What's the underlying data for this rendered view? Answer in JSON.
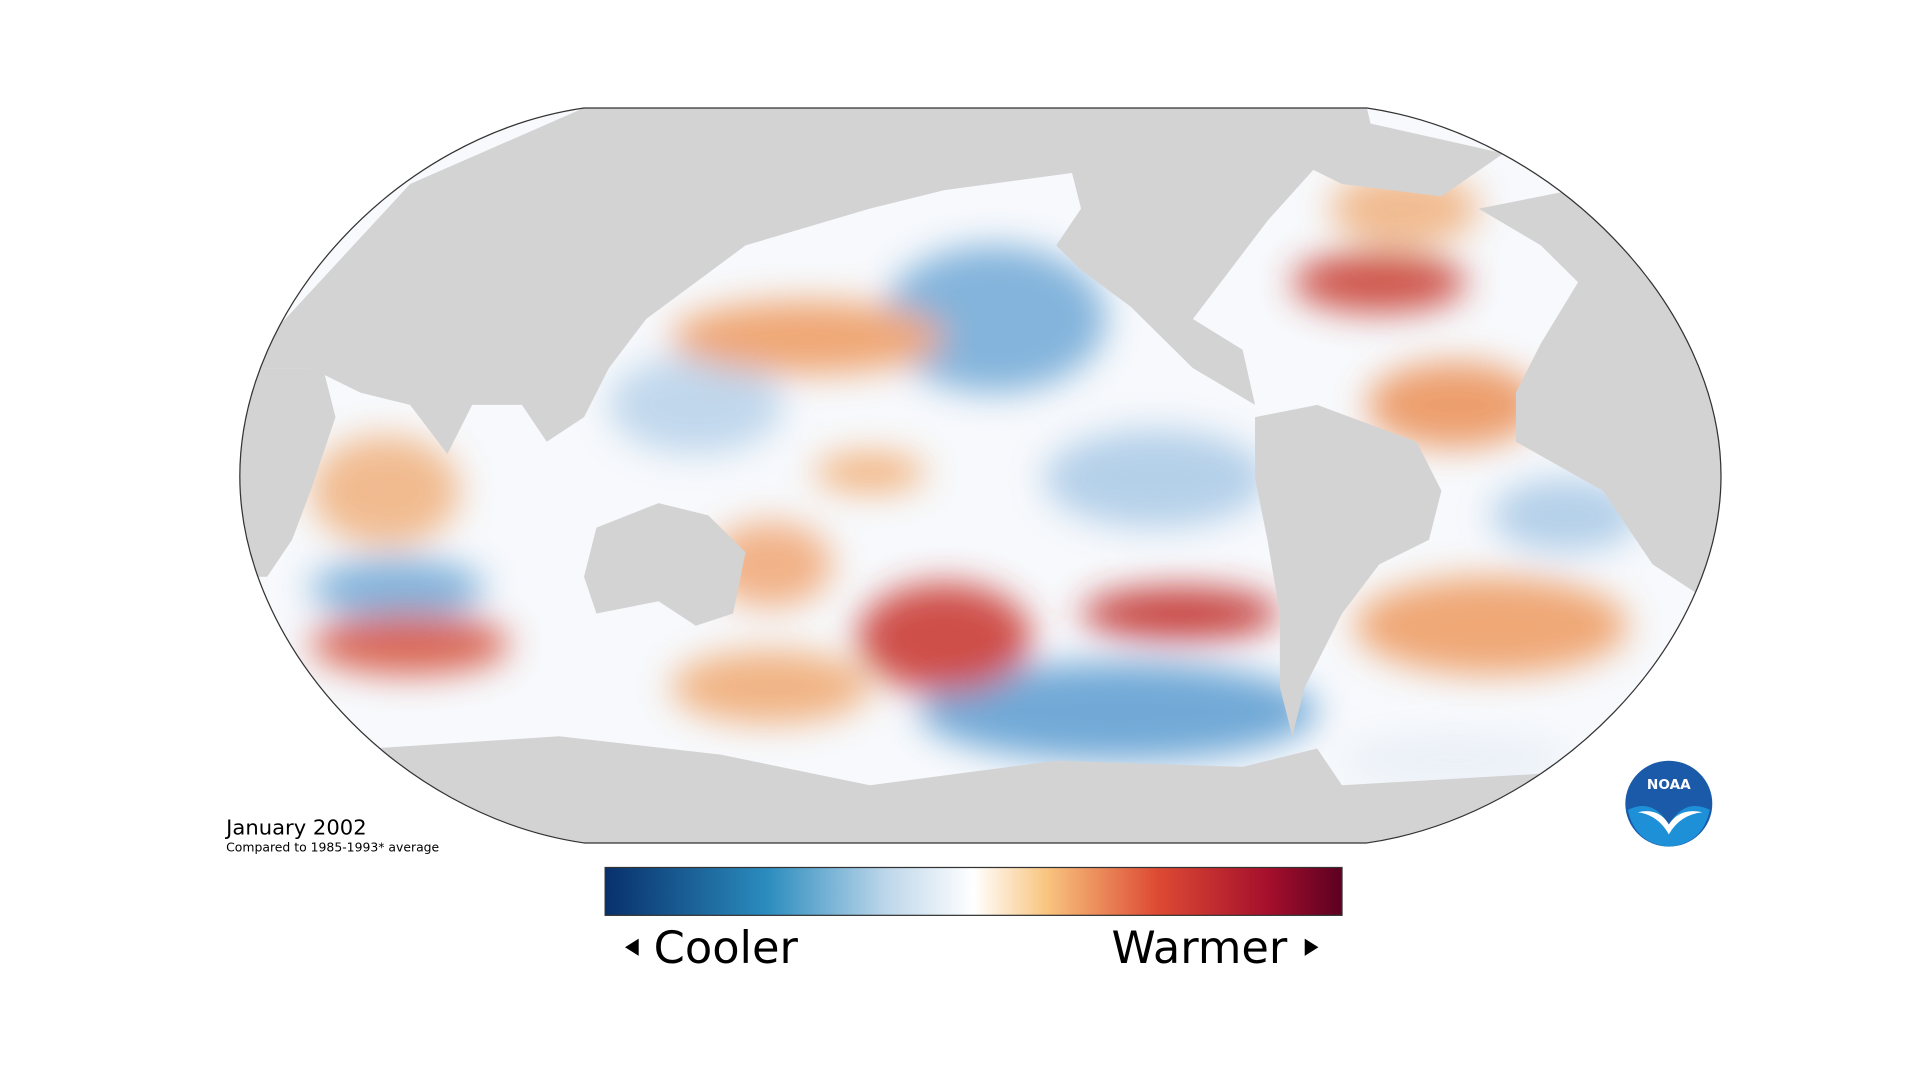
{
  "map": {
    "title": "January 2002",
    "subtitle": "Compared to 1985-1993* average",
    "legend": {
      "low_label": "Cooler",
      "high_label": "Warmer"
    },
    "logo": "NOAA"
  }
}
